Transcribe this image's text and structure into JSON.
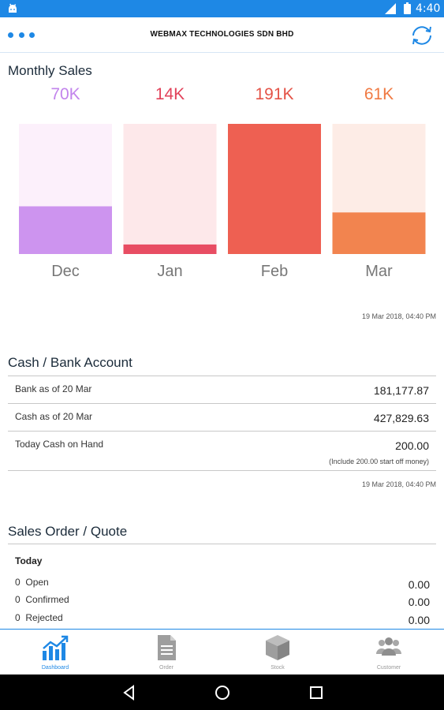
{
  "status_bar": {
    "time": "4:40"
  },
  "app_bar": {
    "title": "WEBMAX TECHNOLOGIES SDN BHD"
  },
  "monthly_sales": {
    "heading": "Monthly Sales",
    "timestamp": "19 Mar 2018, 04:40 PM"
  },
  "chart_data": {
    "type": "bar",
    "title": "Monthly Sales",
    "categories": [
      "Dec",
      "Jan",
      "Feb",
      "Mar"
    ],
    "value_labels": [
      "70K",
      "14K",
      "191K",
      "61K"
    ],
    "values": [
      70,
      14,
      191,
      61
    ],
    "unit": "K",
    "ylim": [
      0,
      191
    ],
    "colors": {
      "fill": [
        "#cd94ef",
        "#e84d63",
        "#ee6052",
        "#f2844f"
      ],
      "track": [
        "#fcf0fb",
        "#fde8ea",
        "#fde8e6",
        "#fdece6"
      ],
      "label": [
        "#c284ec",
        "#e2425a",
        "#e45347",
        "#f07a43"
      ]
    }
  },
  "cash_bank": {
    "heading": "Cash / Bank Account",
    "rows": [
      {
        "label": "Bank as of 20 Mar",
        "value": "181,177.87"
      },
      {
        "label": "Cash as of 20 Mar",
        "value": "427,829.63"
      },
      {
        "label": "Today Cash on Hand",
        "value": "200.00",
        "note": "(Include 200.00 start off money)"
      }
    ],
    "timestamp": "19 Mar 2018, 04:40 PM"
  },
  "sales_order": {
    "heading": "Sales Order / Quote",
    "period": "Today",
    "rows": [
      {
        "count": "0",
        "label": "Open",
        "value": "0.00"
      },
      {
        "count": "0",
        "label": "Confirmed",
        "value": "0.00"
      },
      {
        "count": "0",
        "label": "Rejected",
        "value": "0.00"
      }
    ]
  },
  "tabs": [
    {
      "label": "Dashboard",
      "icon": "chart-icon",
      "active": true
    },
    {
      "label": "Order",
      "icon": "document-icon",
      "active": false
    },
    {
      "label": "Stock",
      "icon": "box-icon",
      "active": false
    },
    {
      "label": "Customer",
      "icon": "people-icon",
      "active": false
    }
  ],
  "theme": {
    "accent": "#1e88e5",
    "heading": "#1b2b3a"
  }
}
